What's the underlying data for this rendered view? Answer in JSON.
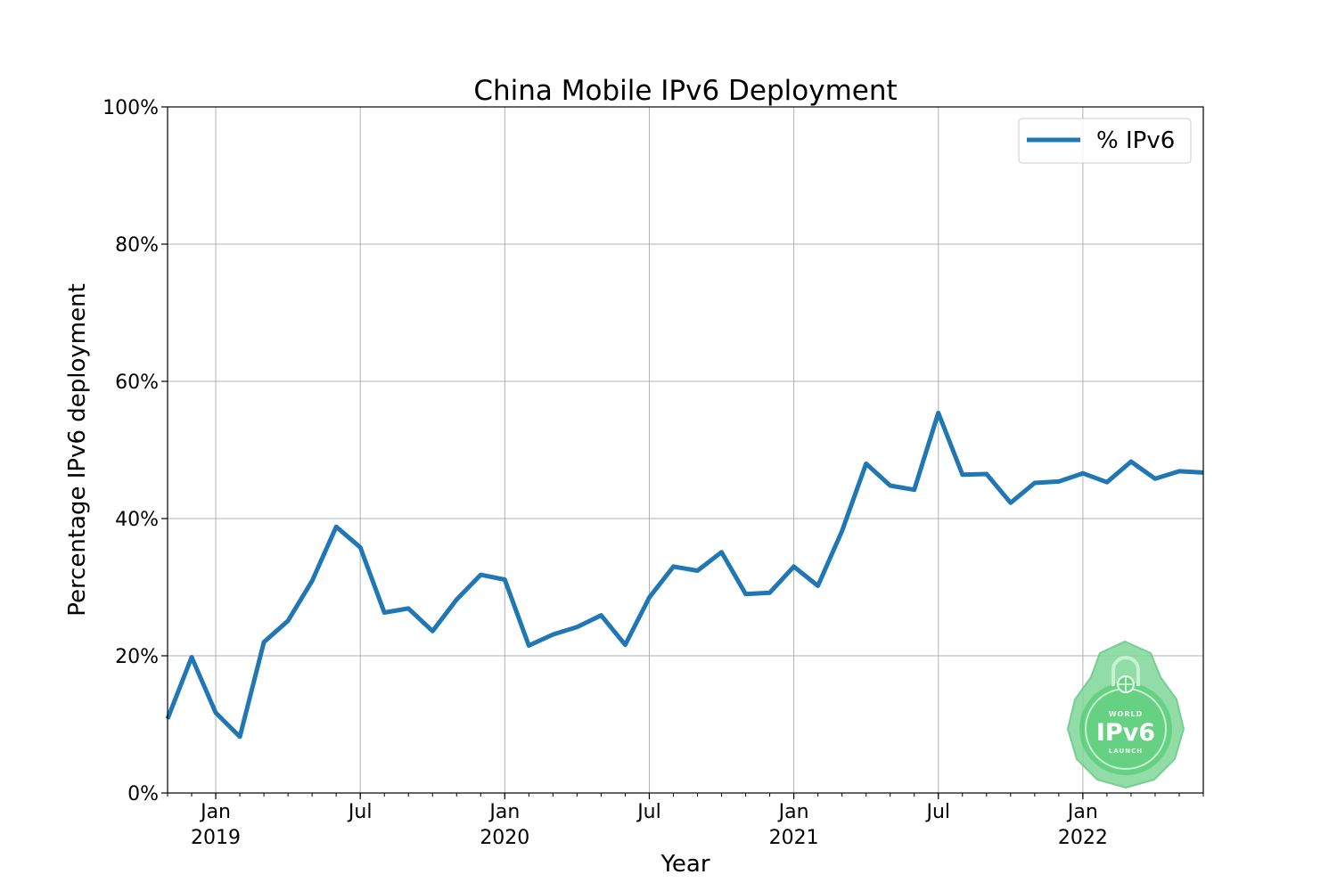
{
  "chart_data": {
    "type": "line",
    "title": "China Mobile IPv6 Deployment",
    "xlabel": "Year",
    "ylabel": "Percentage IPv6 deployment",
    "ylim": [
      0,
      100
    ],
    "y_ticks": [
      0,
      20,
      40,
      60,
      80,
      100
    ],
    "y_tick_labels": [
      "0%",
      "20%",
      "40%",
      "60%",
      "80%",
      "100%"
    ],
    "x_range_months": [
      "2018-11",
      "2022-06"
    ],
    "x_ticks": [
      {
        "month": "2019-01",
        "label": "Jan",
        "year": "2019"
      },
      {
        "month": "2019-07",
        "label": "Jul",
        "year": ""
      },
      {
        "month": "2020-01",
        "label": "Jan",
        "year": "2020"
      },
      {
        "month": "2020-07",
        "label": "Jul",
        "year": ""
      },
      {
        "month": "2021-01",
        "label": "Jan",
        "year": "2021"
      },
      {
        "month": "2021-07",
        "label": "Jul",
        "year": ""
      },
      {
        "month": "2022-01",
        "label": "Jan",
        "year": "2022"
      }
    ],
    "grid": true,
    "legend_position": "top-right",
    "series": [
      {
        "name": "% IPv6",
        "color": "#1f77b4",
        "x": [
          "2018-11",
          "2018-12",
          "2019-01",
          "2019-02",
          "2019-03",
          "2019-04",
          "2019-05",
          "2019-06",
          "2019-07",
          "2019-08",
          "2019-09",
          "2019-10",
          "2019-11",
          "2019-12",
          "2020-01",
          "2020-02",
          "2020-03",
          "2020-04",
          "2020-05",
          "2020-06",
          "2020-07",
          "2020-08",
          "2020-09",
          "2020-10",
          "2020-11",
          "2020-12",
          "2021-01",
          "2021-02",
          "2021-03",
          "2021-04",
          "2021-05",
          "2021-06",
          "2021-07",
          "2021-08",
          "2021-09",
          "2021-10",
          "2021-11",
          "2021-12",
          "2022-01",
          "2022-02",
          "2022-03",
          "2022-04",
          "2022-05",
          "2022-06"
        ],
        "values": [
          10.8,
          19.8,
          11.7,
          8.2,
          22.0,
          25.1,
          30.9,
          38.8,
          35.8,
          26.3,
          26.9,
          23.6,
          28.2,
          31.8,
          31.1,
          21.5,
          23.1,
          24.2,
          25.9,
          21.6,
          28.5,
          33.0,
          32.4,
          35.1,
          29.0,
          29.2,
          33.0,
          30.2,
          38.2,
          48.0,
          44.8,
          44.2,
          55.4,
          46.4,
          46.5,
          42.3,
          45.2,
          45.4,
          46.6,
          45.3,
          48.3,
          45.8,
          46.9,
          46.7
        ]
      }
    ]
  },
  "logo": {
    "top_text": "WORLD",
    "main_text": "IPv6",
    "bottom_text": "LAUNCH",
    "color": "#4cc96e"
  }
}
